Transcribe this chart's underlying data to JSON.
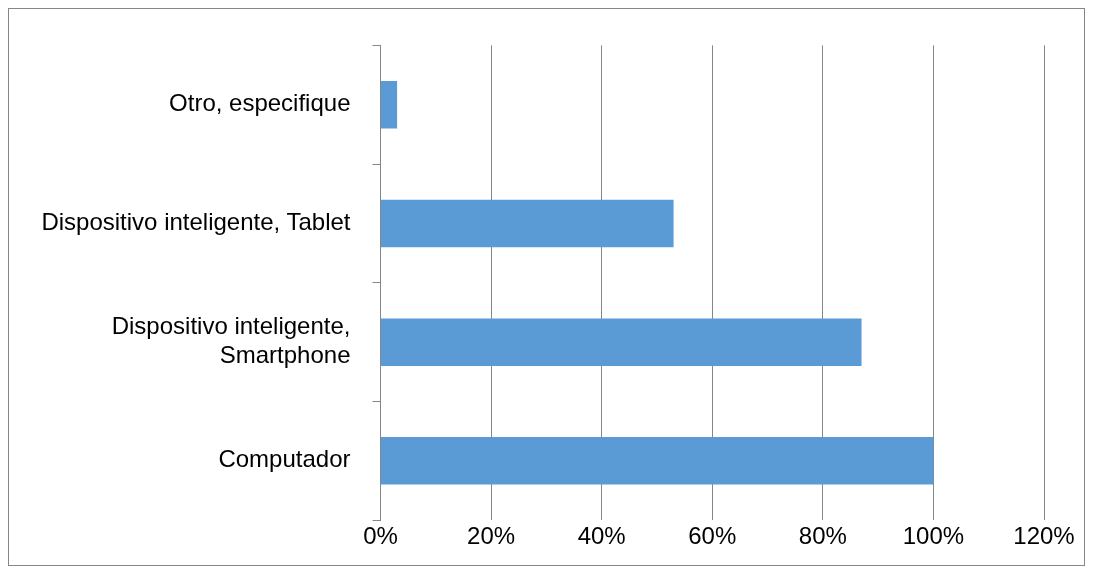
{
  "chart_data": {
    "type": "bar",
    "orientation": "horizontal",
    "categories": [
      "Otro, especifique",
      "Dispositivo inteligente, Tablet",
      "Dispositivo inteligente, Smartphone",
      "Computador"
    ],
    "values": [
      3,
      53,
      87,
      100
    ],
    "color": "#5b9bd5",
    "xlim": [
      0,
      120
    ],
    "xticks": [
      {
        "value": 0,
        "label": "0%"
      },
      {
        "value": 20,
        "label": "20%"
      },
      {
        "value": 40,
        "label": "40%"
      },
      {
        "value": 60,
        "label": "60%"
      },
      {
        "value": 80,
        "label": "80%"
      },
      {
        "value": 100,
        "label": "100%"
      },
      {
        "value": 120,
        "label": "120%"
      }
    ],
    "grid": "x",
    "legend": false
  }
}
